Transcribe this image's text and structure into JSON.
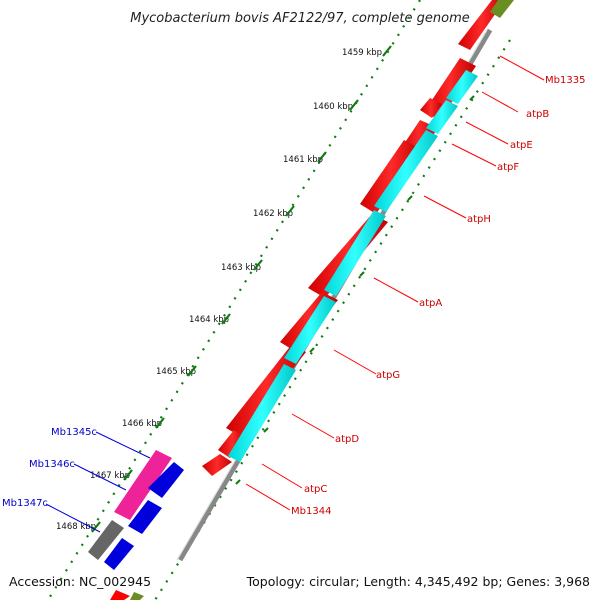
{
  "title": "Mycobacterium bovis AF2122/97, complete genome",
  "footer": {
    "accession": "Accession: NC_002945",
    "topology": "Topology: circular; Length: 4,345,492 bp; Genes: 3,968"
  },
  "ticks": [
    "1459 kbp",
    "1460 kbp",
    "1461 kbp",
    "1462 kbp",
    "1463 kbp",
    "1464 kbp",
    "1465 kbp",
    "1466 kbp",
    "1467 kbp",
    "1468 kbp"
  ],
  "genes_right": [
    "Mb1335",
    "atpB",
    "atpE",
    "atpF",
    "atpH",
    "atpA",
    "atpG",
    "atpD",
    "atpC",
    "Mb1344"
  ],
  "genes_left": [
    "Mb1345c",
    "Mb1346c",
    "Mb1347c"
  ],
  "colors": {
    "cds": "#ff0000",
    "cds_shade": "#c00000",
    "rna_track": "#00e5e5",
    "backbone": "#888888",
    "tick_mark": "#117a11",
    "blue_gene": "#0000dd",
    "pink_gene": "#ee2299",
    "grey_gene": "#666666",
    "olive_gene": "#6b8e23",
    "label_red": "#cc0000",
    "label_blue": "#0000cc"
  }
}
